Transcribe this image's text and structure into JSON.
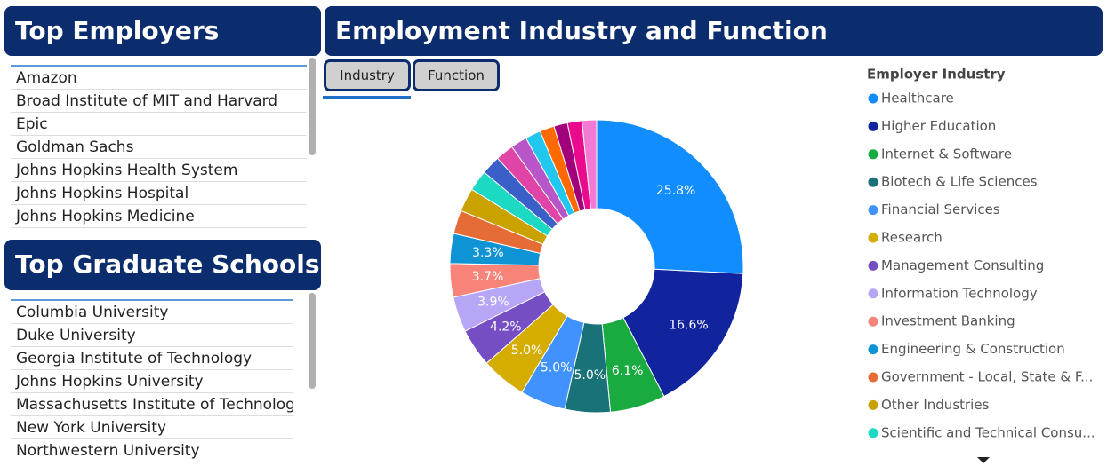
{
  "employers_title": "Top Employers",
  "employers": [
    "Amazon",
    "Broad Institute of MIT and Harvard",
    "Epic",
    "Goldman Sachs",
    "Johns Hopkins Health System",
    "Johns Hopkins Hospital",
    "Johns Hopkins Medicine"
  ],
  "schools_title": "Top Graduate Schools",
  "schools": [
    "Columbia University",
    "Duke University",
    "Georgia Institute of Technology",
    "Johns Hopkins University",
    "Massachusetts Institute of Technology",
    "New York University",
    "Northwestern University"
  ],
  "tabs": [
    "Industry",
    "Function"
  ],
  "chart_data": {
    "type": "donut",
    "title": "Employment Industry and Function",
    "legend_title": "Employer Industry",
    "categories": [
      "Healthcare",
      "Higher Education",
      "Internet & Software",
      "Biotech & Life Sciences",
      "Financial Services",
      "Research",
      "Management Consulting",
      "Information Technology",
      "Investment Banking",
      "Engineering & Construction",
      "Government - Local, State & F...",
      "Other Industries",
      "Scientific and Technical Consu...",
      null,
      null,
      null,
      null,
      null,
      null,
      null,
      null
    ],
    "values": [
      25.8,
      16.6,
      6.1,
      5.0,
      5.0,
      5.0,
      4.2,
      3.9,
      3.7,
      3.3,
      2.6,
      2.6,
      2.3,
      2.1,
      2.0,
      1.8,
      1.7,
      1.6,
      1.5,
      1.6,
      1.6
    ],
    "value_labels": [
      "25.8%",
      "16.6%",
      "6.1%",
      "5.0%",
      "5.0%",
      "5.0%",
      "4.2%",
      "3.9%",
      "3.7%",
      "3.3%",
      null,
      null,
      null,
      null,
      null,
      null,
      null,
      null,
      null,
      null,
      null
    ],
    "colors": [
      "#118dff",
      "#12239e",
      "#1aab40",
      "#197278",
      "#4092ff",
      "#d4ad00",
      "#744ec2",
      "#b7a6f5",
      "#f88379",
      "#0e93d4",
      "#e66c37",
      "#c9a200",
      "#1bd9c2",
      "#3b5fc9",
      "#e044a7",
      "#b855c9",
      "#22c7f0",
      "#ff6a00",
      "#a1007a",
      "#ea0a8e",
      "#f27ad4"
    ]
  }
}
